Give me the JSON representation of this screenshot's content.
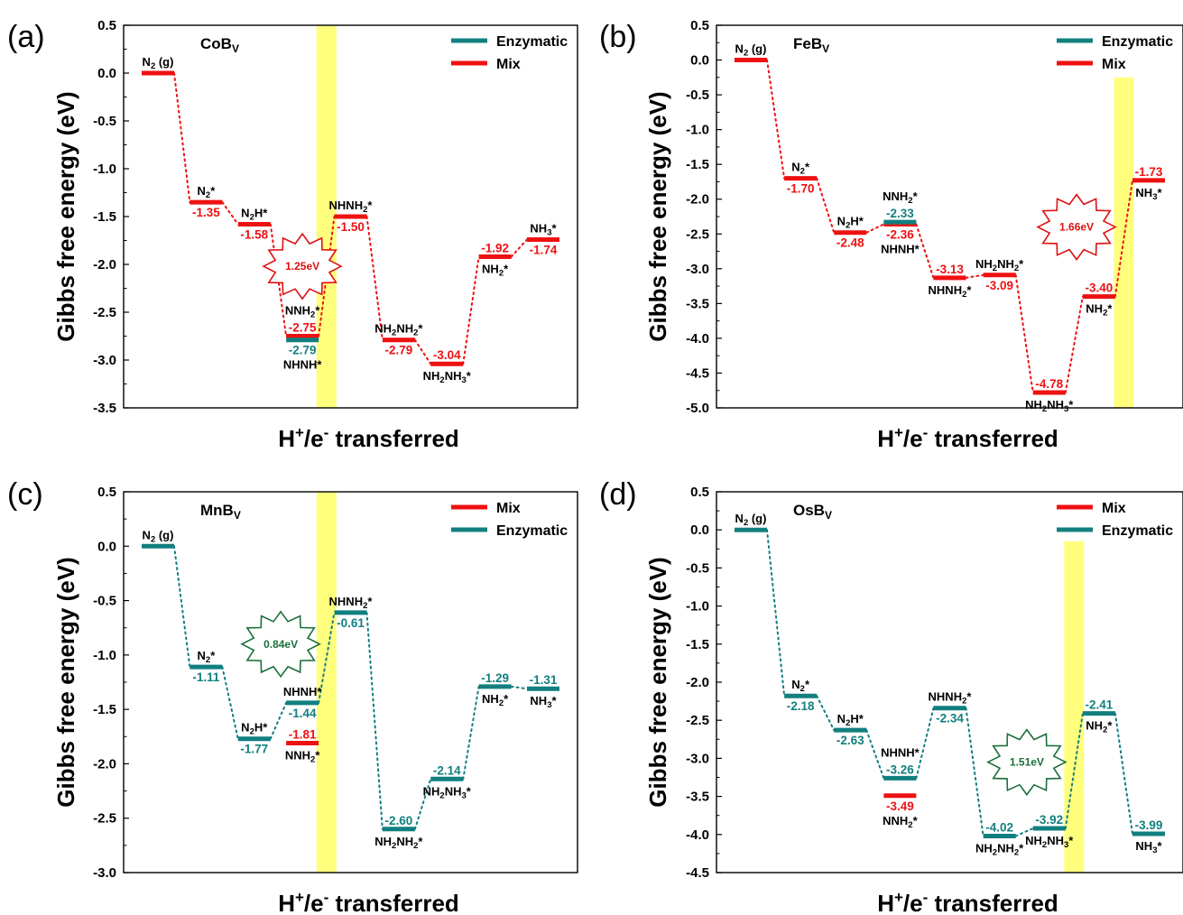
{
  "colors": {
    "mix": "#ee1111",
    "enzymatic": "#127f7f",
    "highlight": "#ffff66",
    "burst_red": "#dd1111",
    "burst_green": "#1b6e3a"
  },
  "chart_data": [
    {
      "type": "line",
      "panel_label": "(a)",
      "system": "CoB",
      "system_sub": "V",
      "ylabel": "Gibbs free energy (eV)",
      "xlabel": "H+/e- transferred",
      "xlabel_parts": [
        "H",
        "+",
        "/e",
        "-",
        " transferred"
      ],
      "ylim": [
        -3.5,
        0.5
      ],
      "yticks": [
        "0.5",
        "0.0",
        "-0.5",
        "-1.0",
        "-1.5",
        "-2.0",
        "-2.5",
        "-3.0",
        "-3.5"
      ],
      "tick_step": 0.5,
      "n_steps": 8,
      "legend": [
        {
          "name": "Enzymatic",
          "key": "enzymatic"
        },
        {
          "name": "Mix",
          "key": "mix"
        }
      ],
      "highlight_step": 3.5,
      "highlight_top": 0.5,
      "barrier": {
        "label": "1.25eV",
        "color": "burst_red",
        "x_step": 3.0,
        "y": -2.02
      },
      "series": [
        {
          "name": "Mix",
          "color": "mix",
          "levels": [
            {
              "step": 0,
              "y": 0.0,
              "label": "",
              "species": [
                "N",
                "2",
                " (g)"
              ],
              "sp_pos": "above"
            },
            {
              "step": 1,
              "y": -1.35,
              "label": "-1.35",
              "val_pos": "below",
              "species": [
                "N",
                "2",
                "*"
              ],
              "sp_pos": "above"
            },
            {
              "step": 2,
              "y": -1.58,
              "label": "-1.58",
              "val_pos": "below",
              "species": [
                "N",
                "2",
                "H*"
              ],
              "sp_pos": "above"
            },
            {
              "step": 3,
              "y": -2.75,
              "label": "-2.75",
              "val_pos": "above",
              "species": [
                "NNH",
                "2",
                "*"
              ],
              "sp_pos": "above2"
            },
            {
              "step": 4,
              "y": -1.5,
              "label": "-1.50",
              "val_pos": "below",
              "species": [
                "NHNH",
                "2",
                "*"
              ],
              "sp_pos": "above"
            },
            {
              "step": 5,
              "y": -2.79,
              "label": "-2.79",
              "val_pos": "below",
              "species": [
                "NH",
                "2",
                "NH",
                "2",
                "*"
              ],
              "sp_pos": "above"
            },
            {
              "step": 6,
              "y": -3.04,
              "label": "-3.04",
              "val_pos": "above",
              "species": [
                "NH",
                "2",
                "NH",
                "3",
                "*"
              ],
              "sp_pos": "below"
            },
            {
              "step": 7,
              "y": -1.92,
              "label": "-1.92",
              "val_pos": "above",
              "species": [
                "NH",
                "2",
                "*"
              ],
              "sp_pos": "below"
            },
            {
              "step": 8,
              "y": -1.74,
              "label": "-1.74",
              "val_pos": "below",
              "species": [
                "NH",
                "3",
                "*"
              ],
              "sp_pos": "above"
            }
          ]
        },
        {
          "name": "Enzymatic",
          "color": "enzymatic",
          "levels": [
            {
              "step": 3,
              "y": -2.79,
              "label": "-2.79",
              "val_pos": "below",
              "species": [
                "NHNH*"
              ],
              "sp_pos": "below2"
            }
          ]
        }
      ]
    },
    {
      "type": "line",
      "panel_label": "(b)",
      "system": "FeB",
      "system_sub": "V",
      "ylabel": "Gibbs free energy (eV)",
      "xlabel": "H+/e- transferred",
      "xlabel_parts": [
        "H",
        "+",
        "/e",
        "-",
        " transferred"
      ],
      "ylim": [
        -5.0,
        0.5
      ],
      "yticks": [
        "0.5",
        "0.0",
        "-0.5",
        "-1.0",
        "-1.5",
        "-2.0",
        "-2.5",
        "-3.0",
        "-3.5",
        "-4.0",
        "-4.5",
        "-5.0"
      ],
      "tick_step": 0.5,
      "n_steps": 8,
      "legend": [
        {
          "name": "Enzymatic",
          "key": "enzymatic"
        },
        {
          "name": "Mix",
          "key": "mix"
        }
      ],
      "highlight_step": 7.5,
      "highlight_top": -0.25,
      "barrier": {
        "label": "1.66eV",
        "color": "burst_red",
        "x_step": 6.55,
        "y": -2.4
      },
      "series": [
        {
          "name": "Mix",
          "color": "mix",
          "levels": [
            {
              "step": 0,
              "y": 0.0,
              "label": "",
              "species": [
                "N",
                "2",
                " (g)"
              ],
              "sp_pos": "above"
            },
            {
              "step": 1,
              "y": -1.7,
              "label": "-1.70",
              "val_pos": "below",
              "species": [
                "N",
                "2",
                "*"
              ],
              "sp_pos": "above"
            },
            {
              "step": 2,
              "y": -2.48,
              "label": "-2.48",
              "val_pos": "below",
              "species": [
                "N",
                "2",
                "H*"
              ],
              "sp_pos": "above"
            },
            {
              "step": 3,
              "y": -2.36,
              "label": "-2.36",
              "val_pos": "below",
              "species": [
                "NHNH*"
              ],
              "sp_pos": "below2"
            },
            {
              "step": 4,
              "y": -3.13,
              "label": "-3.13",
              "val_pos": "above",
              "species": [
                "NHNH",
                "2",
                "*"
              ],
              "sp_pos": "below"
            },
            {
              "step": 5,
              "y": -3.09,
              "label": "-3.09",
              "val_pos": "below",
              "species": [
                "NH",
                "2",
                "NH",
                "2",
                "*"
              ],
              "sp_pos": "above"
            },
            {
              "step": 6,
              "y": -4.78,
              "label": "-4.78",
              "val_pos": "above",
              "species": [
                "NH",
                "2",
                "NH",
                "3",
                "*"
              ],
              "sp_pos": "below"
            },
            {
              "step": 7,
              "y": -3.4,
              "label": "-3.40",
              "val_pos": "above",
              "species": [
                "NH",
                "2",
                "*"
              ],
              "sp_pos": "below"
            },
            {
              "step": 8,
              "y": -1.73,
              "label": "-1.73",
              "val_pos": "above",
              "species": [
                "NH",
                "3",
                "*"
              ],
              "sp_pos": "below"
            }
          ]
        },
        {
          "name": "Enzymatic",
          "color": "enzymatic",
          "levels": [
            {
              "step": 3,
              "y": -2.33,
              "label": "-2.33",
              "val_pos": "above",
              "species": [
                "NNH",
                "2",
                "*"
              ],
              "sp_pos": "above2"
            }
          ]
        }
      ]
    },
    {
      "type": "line",
      "panel_label": "(c)",
      "system": "MnB",
      "system_sub": "V",
      "ylabel": "Gibbs free energy (eV)",
      "xlabel": "H+/e- transferred",
      "xlabel_parts": [
        "H",
        "+",
        "/e",
        "-",
        " transferred"
      ],
      "ylim": [
        -3.0,
        0.5
      ],
      "yticks": [
        "0.5",
        "0.0",
        "-0.5",
        "-1.0",
        "-1.5",
        "-2.0",
        "-2.5",
        "-3.0"
      ],
      "tick_step": 0.5,
      "n_steps": 8,
      "legend": [
        {
          "name": "Mix",
          "key": "mix"
        },
        {
          "name": "Enzymatic",
          "key": "enzymatic"
        }
      ],
      "highlight_step": 3.5,
      "highlight_top": 0.5,
      "barrier": {
        "label": "0.84eV",
        "color": "burst_green",
        "x_step": 2.55,
        "y": -0.9
      },
      "series": [
        {
          "name": "Enzymatic",
          "color": "enzymatic",
          "levels": [
            {
              "step": 0,
              "y": 0.0,
              "label": "",
              "species": [
                "N",
                "2",
                " (g)"
              ],
              "sp_pos": "above"
            },
            {
              "step": 1,
              "y": -1.11,
              "label": "-1.11",
              "val_pos": "below",
              "species": [
                "N",
                "2",
                "*"
              ],
              "sp_pos": "above"
            },
            {
              "step": 2,
              "y": -1.77,
              "label": "-1.77",
              "val_pos": "below",
              "species": [
                "N",
                "2",
                "H*"
              ],
              "sp_pos": "above"
            },
            {
              "step": 3,
              "y": -1.44,
              "label": "-1.44",
              "val_pos": "below",
              "species": [
                "NHNH*"
              ],
              "sp_pos": "above"
            },
            {
              "step": 4,
              "y": -0.61,
              "label": "-0.61",
              "val_pos": "below",
              "species": [
                "NHNH",
                "2",
                "*"
              ],
              "sp_pos": "above"
            },
            {
              "step": 5,
              "y": -2.6,
              "label": "-2.60",
              "val_pos": "above",
              "species": [
                "NH",
                "2",
                "NH",
                "2",
                "*"
              ],
              "sp_pos": "below"
            },
            {
              "step": 6,
              "y": -2.14,
              "label": "-2.14",
              "val_pos": "above",
              "species": [
                "NH",
                "2",
                "NH",
                "3",
                "*"
              ],
              "sp_pos": "below"
            },
            {
              "step": 7,
              "y": -1.29,
              "label": "-1.29",
              "val_pos": "above",
              "species": [
                "NH",
                "2",
                "*"
              ],
              "sp_pos": "below"
            },
            {
              "step": 8,
              "y": -1.31,
              "label": "-1.31",
              "val_pos": "above",
              "species": [
                "NH",
                "3",
                "*"
              ],
              "sp_pos": "below"
            }
          ]
        },
        {
          "name": "Mix",
          "color": "mix",
          "levels": [
            {
              "step": 3,
              "y": -1.81,
              "label": "-1.81",
              "val_pos": "above",
              "species": [
                "NNH",
                "2",
                "*"
              ],
              "sp_pos": "below"
            }
          ]
        }
      ]
    },
    {
      "type": "line",
      "panel_label": "(d)",
      "system": "OsB",
      "system_sub": "V",
      "ylabel": "Gibbs free energy (eV)",
      "xlabel": "H+/e- transferred",
      "xlabel_parts": [
        "H",
        "+",
        "/e",
        "-",
        " transferred"
      ],
      "ylim": [
        -4.5,
        0.5
      ],
      "yticks": [
        "0.5",
        "0.0",
        "-0.5",
        "-1.0",
        "-1.5",
        "-2.0",
        "-2.5",
        "-3.0",
        "-3.5",
        "-4.0",
        "-4.5"
      ],
      "tick_step": 0.5,
      "n_steps": 8,
      "legend": [
        {
          "name": "Mix",
          "key": "mix"
        },
        {
          "name": "Enzymatic",
          "key": "enzymatic"
        }
      ],
      "highlight_step": 6.5,
      "highlight_top": -0.15,
      "barrier": {
        "label": "1.51eV",
        "color": "burst_green",
        "x_step": 5.55,
        "y": -3.05
      },
      "series": [
        {
          "name": "Enzymatic",
          "color": "enzymatic",
          "levels": [
            {
              "step": 0,
              "y": 0.0,
              "label": "",
              "species": [
                "N",
                "2",
                " (g)"
              ],
              "sp_pos": "above"
            },
            {
              "step": 1,
              "y": -2.18,
              "label": "-2.18",
              "val_pos": "below",
              "species": [
                "N",
                "2",
                "*"
              ],
              "sp_pos": "above"
            },
            {
              "step": 2,
              "y": -2.63,
              "label": "-2.63",
              "val_pos": "below",
              "species": [
                "N",
                "2",
                "H*"
              ],
              "sp_pos": "above"
            },
            {
              "step": 3,
              "y": -3.26,
              "label": "-3.26",
              "val_pos": "above",
              "species": [
                "NHNH*"
              ],
              "sp_pos": "above2"
            },
            {
              "step": 4,
              "y": -2.34,
              "label": "-2.34",
              "val_pos": "below",
              "species": [
                "NHNH",
                "2",
                "*"
              ],
              "sp_pos": "above"
            },
            {
              "step": 5,
              "y": -4.02,
              "label": "-4.02",
              "val_pos": "above",
              "species": [
                "NH",
                "2",
                "NH",
                "2",
                "*"
              ],
              "sp_pos": "below"
            },
            {
              "step": 6,
              "y": -3.92,
              "label": "-3.92",
              "val_pos": "above",
              "species": [
                "NH",
                "2",
                "NH",
                "3",
                "*"
              ],
              "sp_pos": "below"
            },
            {
              "step": 7,
              "y": -2.41,
              "label": "-2.41",
              "val_pos": "above",
              "species": [
                "NH",
                "2",
                "*"
              ],
              "sp_pos": "below"
            },
            {
              "step": 8,
              "y": -3.99,
              "label": "-3.99",
              "val_pos": "above",
              "species": [
                "NH",
                "3",
                "*"
              ],
              "sp_pos": "below"
            }
          ]
        },
        {
          "name": "Mix",
          "color": "mix",
          "levels": [
            {
              "step": 3,
              "y": -3.49,
              "label": "-3.49",
              "val_pos": "below",
              "species": [
                "NNH",
                "2",
                "*"
              ],
              "sp_pos": "below2"
            }
          ]
        }
      ]
    }
  ]
}
